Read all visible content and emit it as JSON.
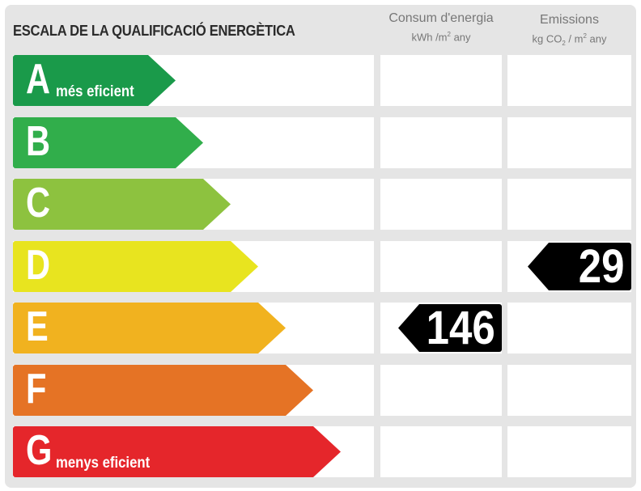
{
  "title": "ESCALA DE LA QUALIFICACIÓ ENERGÈTICA",
  "columns": {
    "consum": {
      "line1": "Consum d'energia",
      "unit_a": "kWh /m",
      "unit_sup": "2",
      "unit_b": " any"
    },
    "emissions": {
      "line1": "Emissions",
      "unit_a": "kg CO",
      "unit_sub": "2",
      "unit_b": " / m",
      "unit_sup": "2",
      "unit_c": " any"
    }
  },
  "ratings": [
    {
      "letter": "A",
      "caption": "més eficient",
      "color": "#1a9a4a"
    },
    {
      "letter": "B",
      "caption": "",
      "color": "#31ae4b"
    },
    {
      "letter": "C",
      "caption": "",
      "color": "#8dc23f"
    },
    {
      "letter": "D",
      "caption": "",
      "color": "#e8e41f"
    },
    {
      "letter": "E",
      "caption": "",
      "color": "#f1b21f"
    },
    {
      "letter": "F",
      "caption": "",
      "color": "#e57325"
    },
    {
      "letter": "G",
      "caption": "menys eficient",
      "color": "#e5262b"
    }
  ],
  "consumption": {
    "rating": "E",
    "value": "146"
  },
  "emissions": {
    "rating": "D",
    "value": "29"
  }
}
